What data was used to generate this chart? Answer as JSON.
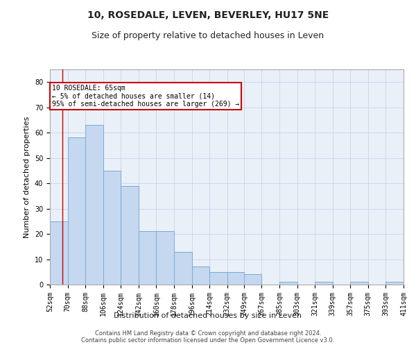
{
  "title": "10, ROSEDALE, LEVEN, BEVERLEY, HU17 5NE",
  "subtitle": "Size of property relative to detached houses in Leven",
  "xlabel": "Distribution of detached houses by size in Leven",
  "ylabel": "Number of detached properties",
  "bar_color": "#c5d8f0",
  "bar_edge_color": "#7aaad4",
  "grid_color": "#c8d4e8",
  "annotation_text": "10 ROSEDALE: 65sqm\n← 5% of detached houses are smaller (14)\n95% of semi-detached houses are larger (269) →",
  "annotation_box_color": "#ffffff",
  "annotation_box_edge": "#cc0000",
  "marker_line_color": "#cc0000",
  "ylim": [
    0,
    85
  ],
  "yticks": [
    0,
    10,
    20,
    30,
    40,
    50,
    60,
    70,
    80
  ],
  "background_color": "#eaf0f8",
  "title_fontsize": 10,
  "subtitle_fontsize": 9,
  "axis_label_fontsize": 8,
  "tick_fontsize": 7,
  "footer_text": "Contains HM Land Registry data © Crown copyright and database right 2024.\nContains public sector information licensed under the Open Government Licence v3.0.",
  "hist_values": [
    25,
    58,
    63,
    45,
    39,
    21,
    21,
    13,
    7,
    5,
    5,
    4,
    0,
    1,
    0,
    1,
    0,
    1,
    0,
    1
  ],
  "bin_edges": [
    52,
    70,
    88,
    106,
    124,
    142,
    160,
    178,
    196,
    214,
    232,
    249,
    267,
    285,
    303,
    321,
    339,
    357,
    375,
    393,
    411
  ],
  "tick_labels": [
    "52sqm",
    "70sqm",
    "88sqm",
    "106sqm",
    "124sqm",
    "142sqm",
    "160sqm",
    "178sqm",
    "196sqm",
    "214sqm",
    "232sqm",
    "249sqm",
    "267sqm",
    "285sqm",
    "303sqm",
    "321sqm",
    "339sqm",
    "357sqm",
    "375sqm",
    "393sqm",
    "411sqm"
  ]
}
